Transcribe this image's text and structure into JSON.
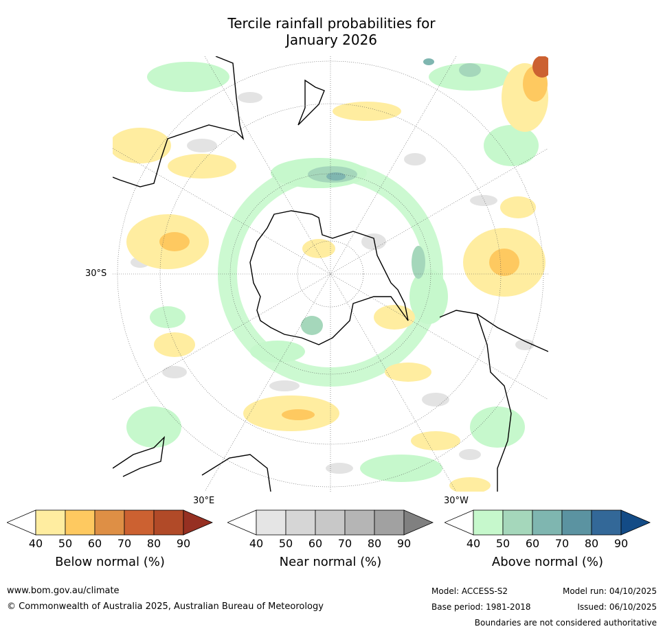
{
  "title": {
    "line1": "Tercile rainfall probabilities for",
    "line2": "January 2026"
  },
  "map_labels": {
    "lat": "30°S",
    "lon_east": "30°E",
    "lon_west": "30°W"
  },
  "legends": [
    {
      "id": "below",
      "label": "Below normal (%)",
      "ticks": [
        "40",
        "50",
        "60",
        "70",
        "80",
        "90"
      ],
      "colors": [
        "#ffeda0",
        "#fec960",
        "#de8f45",
        "#cc6131",
        "#b14a28",
        "#963022"
      ]
    },
    {
      "id": "near",
      "label": "Near normal (%)",
      "ticks": [
        "40",
        "50",
        "60",
        "70",
        "80",
        "90"
      ],
      "colors": [
        "#e5e5e5",
        "#d6d6d6",
        "#c8c8c8",
        "#b5b5b5",
        "#a1a1a1",
        "#808080"
      ]
    },
    {
      "id": "above",
      "label": "Above normal (%)",
      "ticks": [
        "40",
        "50",
        "60",
        "70",
        "80",
        "90"
      ],
      "colors": [
        "#c6f8cc",
        "#a5d7bb",
        "#7fb6b0",
        "#5b93a1",
        "#336898",
        "#134b86"
      ]
    }
  ],
  "footer": {
    "url": "www.bom.gov.au/climate",
    "copyright": "© Commonwealth of Australia 2025, Australian Bureau of Meteorology",
    "model": "Model: ACCESS-S2",
    "base_period": "Base period: 1981-2018",
    "model_run": "Model run: 04/10/2025",
    "issued": "Issued: 06/10/2025",
    "disclaimer": "Boundaries are not considered authoritative"
  }
}
